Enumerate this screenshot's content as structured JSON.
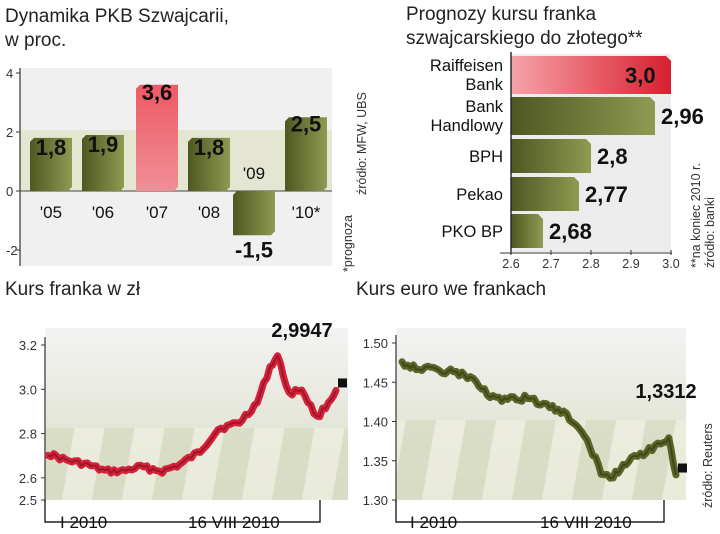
{
  "colors": {
    "bar_green": "#6f7a34",
    "bar_red": "#e8434f",
    "line_red": "#d4223a",
    "line_olive": "#5c6428",
    "stripe": "#d9dcc4",
    "panel_bg": "#eeeeee"
  },
  "panels": {
    "gdp": {
      "title_line1": "Dynamika PKB Szwajcarii,",
      "title_line2": "w proc.",
      "source": "źródło: MFW, UBS",
      "footnote": "*prognoza",
      "ticks": [
        "4",
        "2",
        "0",
        "-2"
      ]
    },
    "forecast": {
      "title_line1": "Prognozy kursu franka",
      "title_line2": "szwajcarskiego do złotego**",
      "note": "**na koniec 2010 r.",
      "source": "źródło: banki",
      "ticks": [
        "2.6",
        "2.7",
        "2.8",
        "2.9",
        "3.0"
      ]
    },
    "chf_pln": {
      "title": "Kurs franka  w zł",
      "ticks": [
        "3.2",
        "3.0",
        "2.8",
        "2.6",
        "2.5"
      ],
      "last_label": "2,9947",
      "x_start": "I 2010",
      "x_end": "16 VIII 2010"
    },
    "eur_chf": {
      "title": "Kurs euro we frankach",
      "ticks": [
        "1.50",
        "1.45",
        "1.40",
        "1.35",
        "1.30"
      ],
      "last_label": "1,3312",
      "x_start": "I 2010",
      "x_end": "16 VIII 2010",
      "source": "źródło: Reuters"
    }
  },
  "chart_data": [
    {
      "type": "bar",
      "title": "Dynamika PKB Szwajcarii, w proc.",
      "categories": [
        "'05",
        "'06",
        "'07",
        "'08",
        "'09",
        "'10*"
      ],
      "values": [
        1.8,
        1.9,
        3.6,
        1.8,
        -1.5,
        2.5
      ],
      "labels": [
        "1,8",
        "1,9",
        "3,6",
        "1,8",
        "-1,5",
        "2,5"
      ],
      "ylim": [
        -2,
        4
      ],
      "highlight_index": 2
    },
    {
      "type": "bar",
      "orientation": "horizontal",
      "title": "Prognozy kursu franka szwajcarskiego do złotego**",
      "categories": [
        [
          "Raiffeisen",
          "Bank"
        ],
        [
          "Bank",
          "Handlowy"
        ],
        [
          "BPH"
        ],
        [
          "Pekao"
        ],
        [
          "PKO BP"
        ]
      ],
      "values": [
        3.0,
        2.96,
        2.8,
        2.77,
        2.68
      ],
      "labels": [
        "3,0",
        "2,96",
        "2,8",
        "2,77",
        "2,68"
      ],
      "xlim": [
        2.6,
        3.0
      ],
      "highlight_index": 0
    },
    {
      "type": "line",
      "title": "Kurs franka  w zł",
      "ylim": [
        2.5,
        3.25
      ],
      "x_labels": [
        "I 2010",
        "16 VIII 2010"
      ],
      "x": [
        "2010-01-01",
        "2010-01-15",
        "2010-02-01",
        "2010-02-15",
        "2010-03-01",
        "2010-03-15",
        "2010-04-01",
        "2010-04-15",
        "2010-05-01",
        "2010-05-15",
        "2010-06-01",
        "2010-06-15",
        "2010-06-25",
        "2010-07-01",
        "2010-07-10",
        "2010-07-20",
        "2010-08-01",
        "2010-08-10",
        "2010-08-16"
      ],
      "values": [
        2.71,
        2.68,
        2.66,
        2.63,
        2.63,
        2.65,
        2.63,
        2.66,
        2.72,
        2.82,
        2.85,
        2.94,
        3.1,
        3.15,
        2.98,
        3.0,
        2.87,
        2.94,
        2.995
      ],
      "last_value": 2.9947
    },
    {
      "type": "line",
      "title": "Kurs euro we frankach",
      "ylim": [
        1.3,
        1.5
      ],
      "x_labels": [
        "I 2010",
        "16 VIII 2010"
      ],
      "x": [
        "2010-01-01",
        "2010-01-15",
        "2010-02-01",
        "2010-02-15",
        "2010-03-01",
        "2010-03-15",
        "2010-04-01",
        "2010-04-15",
        "2010-05-01",
        "2010-05-15",
        "2010-06-01",
        "2010-06-15",
        "2010-06-25",
        "2010-07-01",
        "2010-07-10",
        "2010-07-20",
        "2010-08-01",
        "2010-08-10",
        "2010-08-16"
      ],
      "values": [
        1.475,
        1.468,
        1.465,
        1.462,
        1.455,
        1.43,
        1.428,
        1.43,
        1.42,
        1.41,
        1.385,
        1.335,
        1.33,
        1.34,
        1.355,
        1.36,
        1.37,
        1.38,
        1.332
      ],
      "last_value": 1.3312
    }
  ]
}
